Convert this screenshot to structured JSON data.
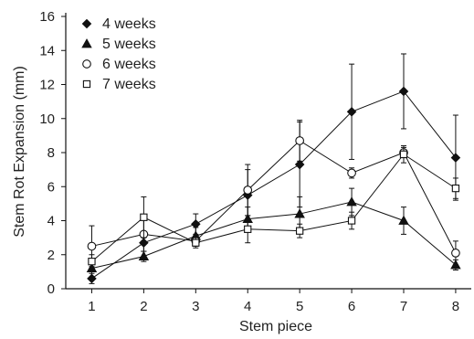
{
  "chart_data": {
    "type": "line",
    "title": "",
    "xlabel": "Stem piece",
    "ylabel": "Stem Rot Expansion (mm)",
    "categories": [
      "1",
      "2",
      "3",
      "4",
      "5",
      "6",
      "7",
      "8"
    ],
    "xlim": [
      0.5,
      8.3
    ],
    "ylim": [
      0,
      16
    ],
    "yticks": [
      0,
      2,
      4,
      6,
      8,
      10,
      12,
      14,
      16
    ],
    "grid": false,
    "legend_position": "top-left",
    "series": [
      {
        "name": "4 weeks",
        "marker": "diamond-filled",
        "values": [
          0.6,
          2.7,
          3.8,
          5.5,
          7.3,
          10.4,
          11.6,
          7.7
        ],
        "error": [
          0.3,
          0.5,
          0.6,
          1.5,
          2.5,
          2.8,
          2.2,
          2.5
        ]
      },
      {
        "name": "5 weeks",
        "marker": "triangle-filled",
        "values": [
          1.2,
          1.9,
          3.1,
          4.1,
          4.4,
          5.1,
          4.0,
          1.4
        ],
        "error": [
          0.5,
          0.3,
          0.5,
          0.7,
          1.0,
          0.8,
          0.8,
          0.3
        ]
      },
      {
        "name": "6 weeks",
        "marker": "circle-open",
        "values": [
          2.5,
          3.2,
          2.8,
          5.8,
          8.7,
          6.8,
          8.0,
          2.1
        ],
        "error": [
          1.2,
          1.0,
          0.3,
          1.5,
          1.2,
          0.3,
          0.3,
          0.7
        ]
      },
      {
        "name": "7 weeks",
        "marker": "square-open",
        "values": [
          1.6,
          4.2,
          2.7,
          3.5,
          3.4,
          4.0,
          7.9,
          5.9
        ],
        "error": [
          0.4,
          1.2,
          0.3,
          0.8,
          0.4,
          0.5,
          0.5,
          0.6
        ]
      }
    ]
  },
  "colors": {
    "series_stroke": "#111111",
    "axis": "#111111"
  }
}
